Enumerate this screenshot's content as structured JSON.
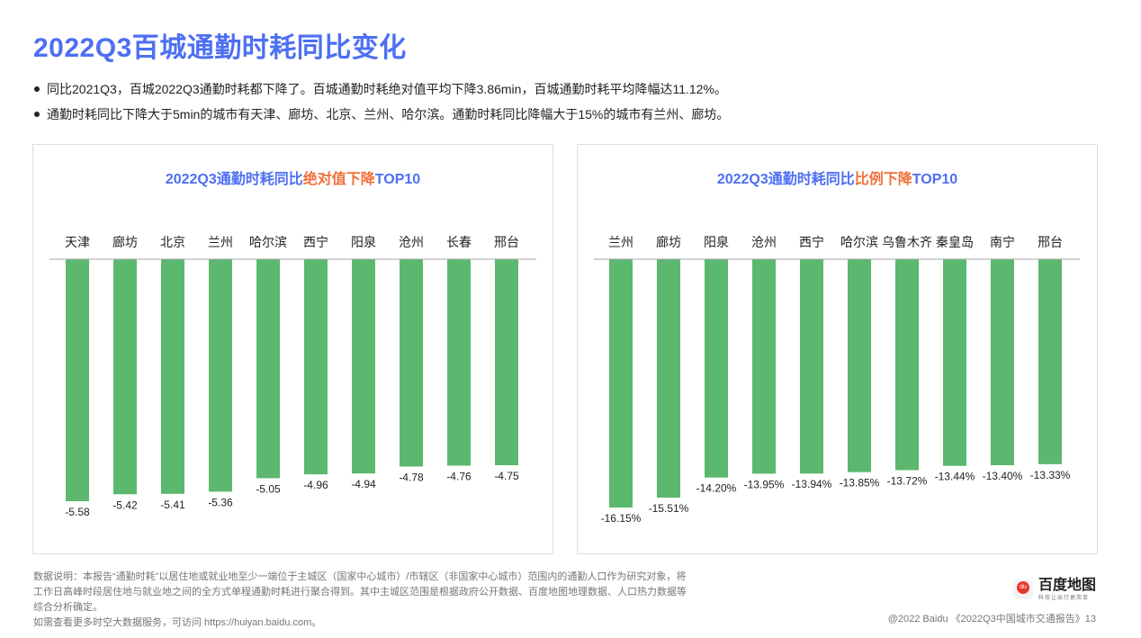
{
  "title": "2022Q3百城通勤时耗同比变化",
  "bullets": [
    "同比2021Q3，百城2022Q3通勤时耗都下降了。百城通勤时耗绝对值平均下降3.86min，百城通勤时耗平均降幅达11.12%。",
    "通勤时耗同比下降大于5min的城市有天津、廊坊、北京、兰州、哈尔滨。通勤时耗同比降幅大于15%的城市有兰州、廊坊。"
  ],
  "colors": {
    "title": "#4d6ff2",
    "highlight": "#f0703a",
    "bar": "#5bb86e"
  },
  "chart_data": [
    {
      "type": "bar",
      "title_prefix": "2022Q3通勤时耗同比",
      "title_highlight": "绝对值下降",
      "title_suffix": "TOP10",
      "categories": [
        "天津",
        "廊坊",
        "北京",
        "兰州",
        "哈尔滨",
        "西宁",
        "阳泉",
        "沧州",
        "长春",
        "邢台"
      ],
      "values": [
        -5.58,
        -5.42,
        -5.41,
        -5.36,
        -5.05,
        -4.96,
        -4.94,
        -4.78,
        -4.76,
        -4.75
      ],
      "labels": [
        "-5.58",
        "-5.42",
        "-5.41",
        "-5.36",
        "-5.05",
        "-4.96",
        "-4.94",
        "-4.78",
        "-4.76",
        "-4.75"
      ],
      "unit": "min"
    },
    {
      "type": "bar",
      "title_prefix": "2022Q3通勤时耗同比",
      "title_highlight": "比例下降",
      "title_suffix": "TOP10",
      "categories": [
        "兰州",
        "廊坊",
        "阳泉",
        "沧州",
        "西宁",
        "哈尔滨",
        "乌鲁木齐",
        "秦皇岛",
        "南宁",
        "邢台"
      ],
      "values": [
        -16.15,
        -15.51,
        -14.2,
        -13.95,
        -13.94,
        -13.85,
        -13.72,
        -13.44,
        -13.4,
        -13.33
      ],
      "labels": [
        "-16.15%",
        "-15.51%",
        "-14.20%",
        "-13.95%",
        "-13.94%",
        "-13.85%",
        "-13.72%",
        "-13.44%",
        "-13.40%",
        "-13.33%"
      ],
      "unit": "%"
    }
  ],
  "footer": {
    "note": [
      "数据说明：本报告“通勤时耗”以居住地或就业地至少一端位于主城区（国家中心城市）/市辖区（非国家中心城市）范围内的通勤人口作为研究对象，将",
      "工作日高峰时段居住地与就业地之间的全方式单程通勤时耗进行聚合得到。其中主城区范围是根据政府公开数据、百度地图地理数据、人口热力数据等",
      "综合分析确定。",
      "如需查看更多时空大数据服务，可访问 https://huiyan.baidu.com。"
    ],
    "copyright": "@2022 Baidu 《2022Q3中国城市交通报告》13",
    "logo": "百度地图",
    "logo_slogan": "科技让出行更简单"
  }
}
